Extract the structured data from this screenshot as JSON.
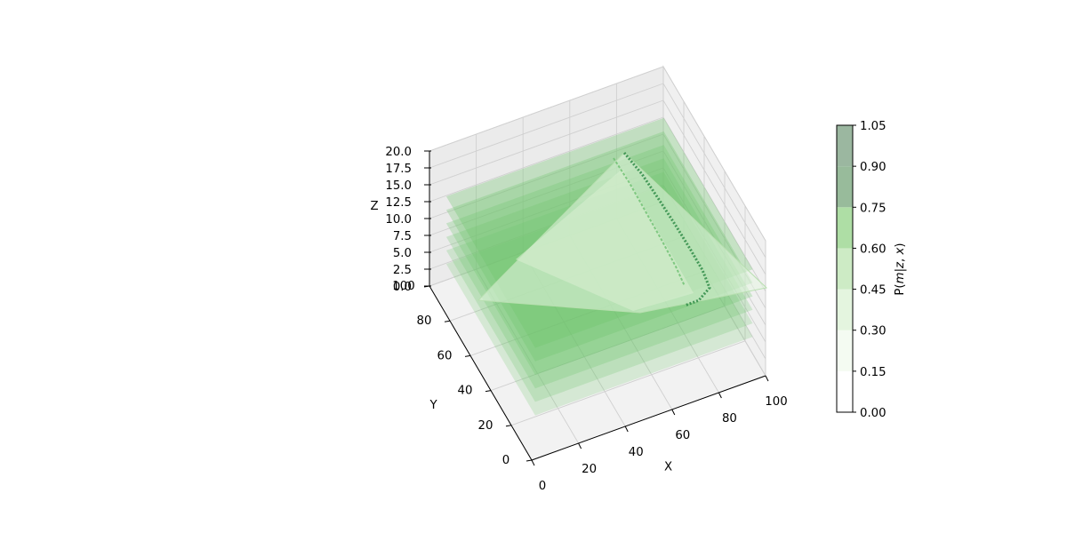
{
  "chart_data": {
    "type": "3d-voxel-surface",
    "x_axis": {
      "label": "X",
      "ticks": [
        "0",
        "20",
        "40",
        "60",
        "80",
        "100"
      ],
      "range": [
        0,
        100
      ]
    },
    "y_axis": {
      "label": "Y",
      "ticks": [
        "0",
        "20",
        "40",
        "60",
        "80",
        "100"
      ],
      "range": [
        0,
        100
      ]
    },
    "z_axis": {
      "label": "Z",
      "ticks": [
        "0.0",
        "2.5",
        "5.0",
        "7.5",
        "10.0",
        "12.5",
        "15.0",
        "17.5",
        "20.0"
      ],
      "range": [
        0,
        20
      ]
    },
    "grid": true,
    "colorbar": {
      "label": "P(m|z, x)",
      "label_parts": {
        "p": "P(",
        "m": "m",
        "mid": "|",
        "z": "z",
        "comma": ", ",
        "x": "x",
        "close": ")"
      },
      "ticks": [
        "0.00",
        "0.15",
        "0.30",
        "0.45",
        "0.60",
        "0.75",
        "0.90",
        "1.05"
      ],
      "range": [
        0,
        1.05
      ],
      "levels": [
        0.0,
        0.15,
        0.3,
        0.45,
        0.6,
        0.75,
        0.9,
        1.05
      ],
      "colors": [
        "#ffffff",
        "#f4fbf2",
        "#e4f5df",
        "#cdebc5",
        "#aedea5",
        "#98bb9b",
        "#9bb7a0"
      ],
      "colormap": "Greens",
      "position": "right"
    },
    "surfaces": [
      {
        "name": "layers",
        "z_values": [
          0,
          2,
          4,
          6,
          8,
          10
        ],
        "value": 0.55
      },
      {
        "name": "cone",
        "value": 0.35
      }
    ]
  }
}
